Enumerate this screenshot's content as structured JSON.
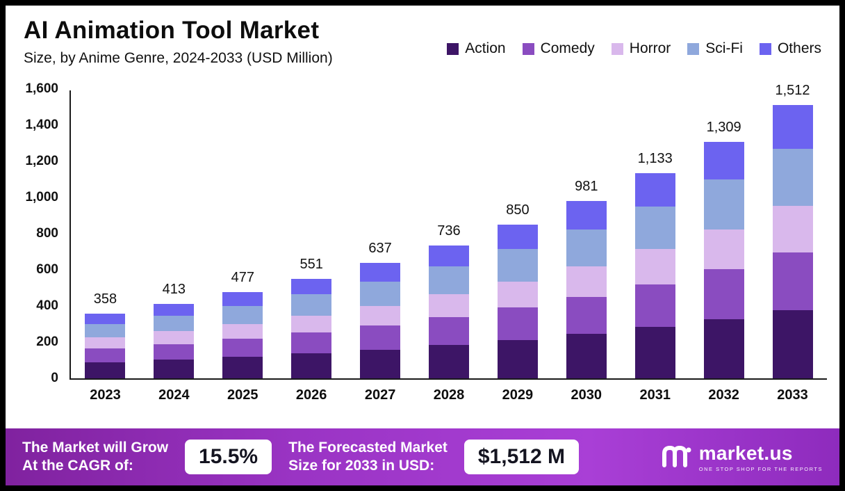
{
  "header": {
    "title": "AI Animation Tool Market",
    "subtitle": "Size, by Anime Genre, 2024-2033 (USD Million)"
  },
  "chart_data": {
    "type": "bar",
    "stacked": true,
    "title": "AI Animation Tool Market Size, by Anime Genre, 2024-2033 (USD Million)",
    "categories": [
      "2023",
      "2024",
      "2025",
      "2026",
      "2027",
      "2028",
      "2029",
      "2030",
      "2031",
      "2032",
      "2033"
    ],
    "series": [
      {
        "name": "Action",
        "color": "#3d1566",
        "values": [
          90,
          103,
          119,
          138,
          159,
          184,
          213,
          245,
          283,
          327,
          378
        ]
      },
      {
        "name": "Comedy",
        "color": "#8a4cc0",
        "values": [
          75,
          87,
          100,
          116,
          134,
          155,
          179,
          206,
          238,
          275,
          318
        ]
      },
      {
        "name": "Horror",
        "color": "#d9b8ec",
        "values": [
          61,
          70,
          81,
          94,
          108,
          125,
          144,
          167,
          193,
          223,
          257
        ]
      },
      {
        "name": "Sci-Fi",
        "color": "#8fa8dc",
        "values": [
          75,
          87,
          100,
          116,
          134,
          155,
          178,
          206,
          238,
          275,
          317
        ]
      },
      {
        "name": "Others",
        "color": "#6c63f0",
        "values": [
          57,
          66,
          77,
          87,
          102,
          117,
          136,
          157,
          181,
          209,
          242
        ]
      }
    ],
    "totals": [
      358,
      413,
      477,
      551,
      637,
      736,
      850,
      981,
      1133,
      1309,
      1512
    ],
    "ylim": [
      0,
      1600
    ],
    "yticks": [
      0,
      200,
      400,
      600,
      800,
      1000,
      1200,
      1400,
      1600
    ],
    "legend_position": "top-right",
    "grid": false,
    "xlabel": "",
    "ylabel": ""
  },
  "banner": {
    "cagr_label_line1": "The Market will Grow",
    "cagr_label_line2": "At the CAGR of:",
    "cagr_value": "15.5%",
    "forecast_label_line1": "The Forecasted Market",
    "forecast_label_line2": "Size for 2033 in USD:",
    "forecast_value": "$1,512 M",
    "brand_name": "market.us",
    "brand_tagline": "ONE STOP SHOP FOR THE REPORTS"
  }
}
